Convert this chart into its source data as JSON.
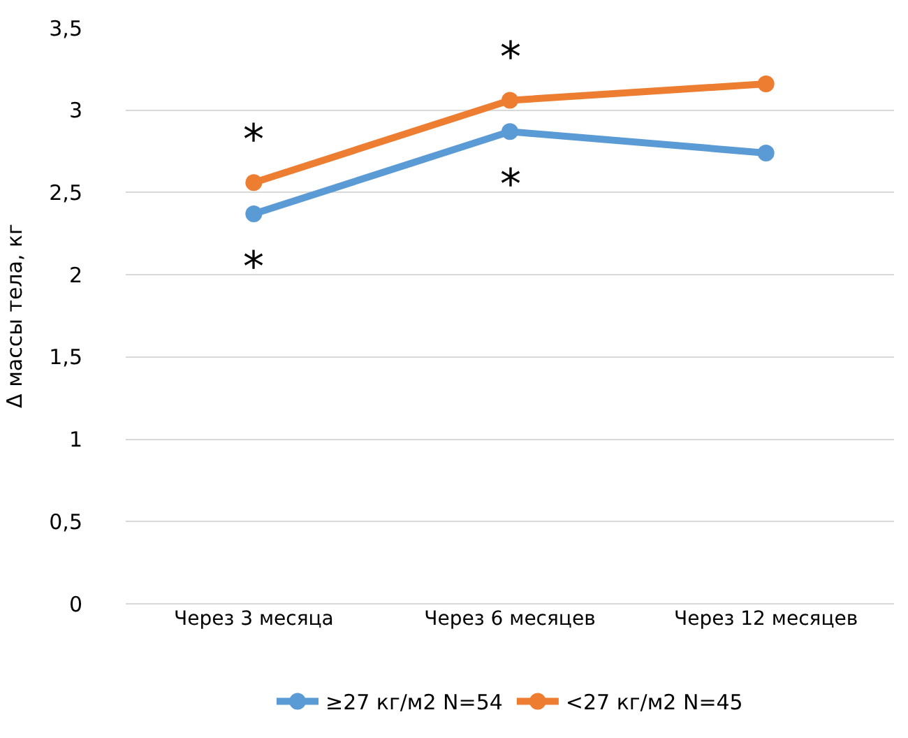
{
  "chart_data": {
    "type": "line",
    "ylabel": "Δ массы тела, кг",
    "categories": [
      "Через 3 месяца",
      "Через 6 месяцев",
      "Через 12 месяцев"
    ],
    "series": [
      {
        "name": "≥27 кг/м2 N=54",
        "color": "#5b9bd5",
        "values": [
          2.37,
          2.87,
          2.74
        ]
      },
      {
        "name": "<27 кг/м2 N=45",
        "color": "#ed7d31",
        "values": [
          2.56,
          3.06,
          3.16
        ]
      }
    ],
    "ylim": [
      0,
      3.5
    ],
    "yticks": [
      {
        "value": 0,
        "label": "0"
      },
      {
        "value": 0.5,
        "label": "0,5"
      },
      {
        "value": 1,
        "label": "1"
      },
      {
        "value": 1.5,
        "label": "1,5"
      },
      {
        "value": 2,
        "label": "2"
      },
      {
        "value": 2.5,
        "label": "2,5"
      },
      {
        "value": 3,
        "label": "3"
      },
      {
        "value": 3.5,
        "label": "3,5"
      }
    ],
    "grid": "y",
    "legend": "bottom",
    "marker": "circle",
    "line_style": "solid",
    "annotations": [
      {
        "text": "*",
        "x": "Через 3 месяца",
        "y": 2.56
      },
      {
        "text": "*",
        "x": "Через 3 месяца",
        "y": 2.37
      },
      {
        "text": "*",
        "x": "Через 6 месяцев",
        "y": 3.06
      },
      {
        "text": "*",
        "x": "Через 6 месяцев",
        "y": 2.87
      }
    ]
  }
}
